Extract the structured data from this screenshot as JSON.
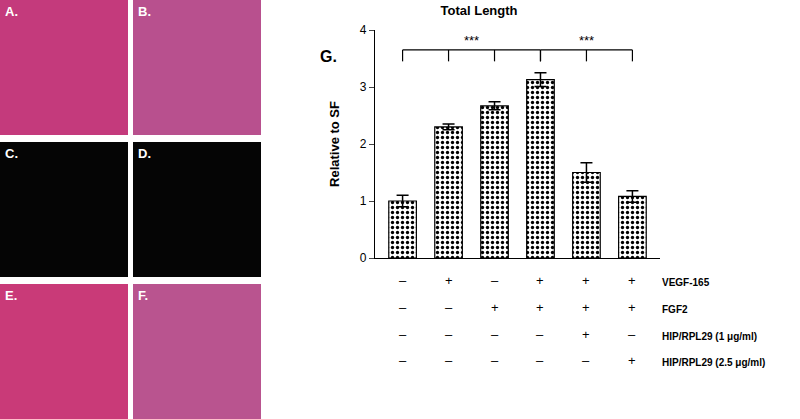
{
  "chart_data": {
    "type": "bar",
    "title": "Total Length",
    "panel_label": "G.",
    "y_label": "Relative to SF",
    "categories": [
      null,
      null,
      null,
      null,
      null,
      null
    ],
    "values": [
      1.0,
      2.3,
      2.67,
      3.13,
      1.5,
      1.08
    ],
    "errors": [
      0.1,
      0.05,
      0.07,
      0.12,
      0.17,
      0.1
    ],
    "color": "#ffffff",
    "ylim": [
      0,
      4
    ],
    "yticks": [
      0,
      1,
      2,
      3,
      4
    ],
    "tick_labels": "y",
    "brackets": [
      {
        "from": 0,
        "to": 3,
        "label": "***"
      },
      {
        "from": 3,
        "to": 5,
        "label": "***"
      }
    ],
    "conditions": [
      {
        "name": "VEGF-165",
        "signs": [
          "–",
          "+",
          "–",
          "+",
          "+",
          "+"
        ]
      },
      {
        "name": "FGF2",
        "signs": [
          "–",
          "–",
          "+",
          "+",
          "+",
          "+"
        ]
      },
      {
        "name": "HIP/RPL29 (1 μg/ml)",
        "signs": [
          "–",
          "–",
          "–",
          "–",
          "+",
          "–"
        ]
      },
      {
        "name": "HIP/RPL29 (2.5 μg/ml)",
        "signs": [
          "–",
          "–",
          "–",
          "–",
          "–",
          "+"
        ]
      }
    ]
  },
  "image_panels": [
    {
      "label": "A.",
      "color": "#c43a7c"
    },
    {
      "label": "B.",
      "color": "#b8508e"
    },
    {
      "label": "C.",
      "color": "#050505"
    },
    {
      "label": "D.",
      "color": "#050505"
    },
    {
      "label": "E.",
      "color": "#c93a78"
    },
    {
      "label": "F.",
      "color": "#b9548f"
    }
  ]
}
